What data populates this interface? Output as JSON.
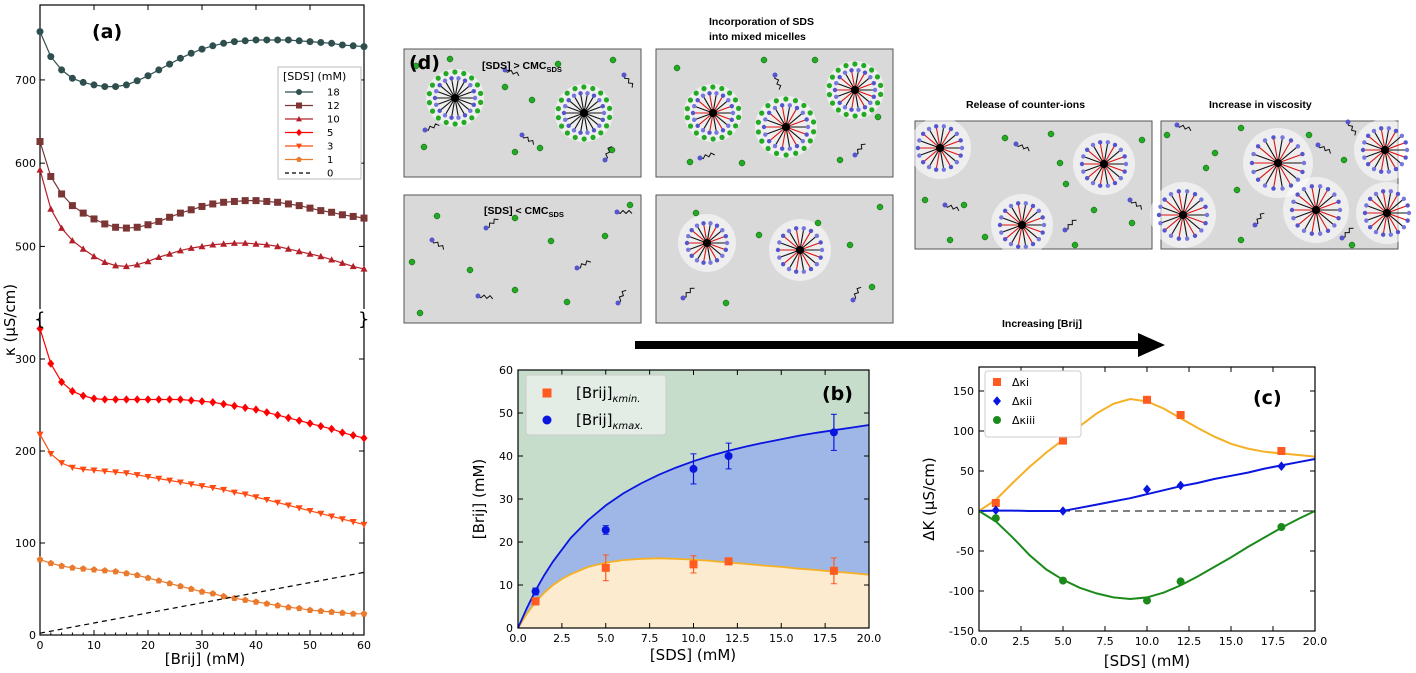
{
  "colors": {
    "sds_18": "#2f4f4f",
    "sds_12": "#7b3535",
    "sds_10": "#b3202a",
    "sds_5": "#ff0000",
    "sds_3": "#ff4a12",
    "sds_1": "#ea7a2d",
    "brij_only": "#000000",
    "kmin": "#ff5a1f",
    "kmax": "#0a16e0",
    "fill_kmin": "#fdebd0",
    "fill_kmax": "#9fb7e6",
    "fill_upper": "#c7ddcc",
    "fit_orange": "#f5b025",
    "fit_blue": "#0a16e0",
    "fit_green": "#1b8a1b",
    "scene_bg": "#d9d9d9",
    "counter_ion": "#22aa22",
    "head": "#5555cc",
    "tail": "#111111",
    "brij_tail": "#dd1111"
  },
  "panel_a": {
    "label": "(a)",
    "xlabel": "[Brij] (mM)",
    "ylabel": "κ (μS/cm)",
    "legend_title": "[SDS] (mM)",
    "x_ticks": [
      "0",
      "10",
      "20",
      "30",
      "40",
      "50",
      "60"
    ],
    "upper_y_ticks": [
      "500",
      "600",
      "700"
    ],
    "lower_y_ticks": [
      "0",
      "100",
      "200",
      "300"
    ],
    "break_marks": [
      {
        "symbol": "{"
      },
      {
        "symbol": "}"
      }
    ]
  },
  "panel_b": {
    "label": "(b)",
    "xlabel": "[SDS] (mM)",
    "ylabel": "[Brij] (mM)",
    "x_ticks": [
      "0.0",
      "2.5",
      "5.0",
      "7.5",
      "10.0",
      "12.5",
      "15.0",
      "17.5",
      "20.0"
    ],
    "y_ticks": [
      "0",
      "10",
      "20",
      "30",
      "40",
      "50",
      "60"
    ],
    "legend": [
      {
        "base": "[Brij]",
        "sub": "κmin.",
        "marker": "square",
        "color_key": "kmin"
      },
      {
        "base": "[Brij]",
        "sub": "κmax.",
        "marker": "circle",
        "color_key": "kmax"
      }
    ]
  },
  "panel_c": {
    "label": "(c)",
    "xlabel": "[SDS] (mM)",
    "ylabel": "ΔK (μS/cm)",
    "x_ticks": [
      "0.0",
      "2.5",
      "5.0",
      "7.5",
      "10.0",
      "12.5",
      "15.0",
      "17.5",
      "20.0"
    ],
    "y_ticks": [
      "-150",
      "-100",
      "-50",
      "0",
      "50",
      "100",
      "150"
    ],
    "legend": [
      {
        "label": "Δκi",
        "marker": "square",
        "color_key": "kmin"
      },
      {
        "label": "Δκii",
        "marker": "diamond",
        "color_key": "kmax"
      },
      {
        "label": "Δκiii",
        "marker": "circle",
        "color_key": "fit_green"
      }
    ]
  },
  "panel_d": {
    "label": "(d)",
    "caption_incorporation_1": "Incorporation of SDS",
    "caption_incorporation_2": "into mixed micelles",
    "caption_release": "Release of counter-ions",
    "caption_viscosity": "Increase in viscosity",
    "caption_increasing": "Increasing  [Brij]",
    "scene_above_cmc": {
      "prefix": "[SDS] > CMC",
      "sub": "SDS"
    },
    "scene_below_cmc": {
      "prefix": "[SDS] < CMC",
      "sub": "SDS"
    }
  },
  "chart_data": [
    {
      "id": "panel_a",
      "type": "line",
      "title": "",
      "xlabel": "[Brij] (mM)",
      "ylabel": "κ (μS/cm)",
      "xlim": [
        0,
        60
      ],
      "ylim_lower": [
        0,
        350
      ],
      "ylim_upper": [
        420,
        790
      ],
      "axis_break": [
        350,
        420
      ],
      "legend_title": "[SDS] (mM)",
      "legend_position": "upper-right",
      "series": [
        {
          "name": "18",
          "marker": "circle",
          "color_key": "sds_18",
          "x": [
            0,
            2,
            4,
            6,
            8,
            10,
            12,
            14,
            16,
            18,
            20,
            22,
            24,
            26,
            28,
            30,
            32,
            34,
            36,
            38,
            40,
            42,
            44,
            46,
            48,
            50,
            52,
            54,
            56,
            58,
            60
          ],
          "y": [
            758,
            728,
            712,
            702,
            697,
            694,
            692,
            692,
            694,
            699,
            705,
            712,
            719,
            726,
            732,
            737,
            741,
            744,
            746,
            747,
            748,
            748,
            748,
            748,
            747,
            746,
            745,
            744,
            742,
            741,
            740
          ]
        },
        {
          "name": "12",
          "marker": "square",
          "color_key": "sds_12",
          "x": [
            0,
            2,
            4,
            6,
            8,
            10,
            12,
            14,
            16,
            18,
            20,
            22,
            24,
            26,
            28,
            30,
            32,
            34,
            36,
            38,
            40,
            42,
            44,
            46,
            48,
            50,
            52,
            54,
            56,
            58,
            60
          ],
          "y": [
            626,
            584,
            563,
            549,
            540,
            533,
            527,
            523,
            522,
            523,
            526,
            530,
            535,
            540,
            544,
            548,
            551,
            553,
            554,
            555,
            555,
            554,
            553,
            551,
            549,
            546,
            543,
            541,
            538,
            536,
            534
          ]
        },
        {
          "name": "10",
          "marker": "triangle-up",
          "color_key": "sds_10",
          "x": [
            0,
            2,
            4,
            6,
            8,
            10,
            12,
            14,
            16,
            18,
            20,
            22,
            24,
            26,
            28,
            30,
            32,
            34,
            36,
            38,
            40,
            42,
            44,
            46,
            48,
            50,
            52,
            54,
            56,
            58,
            60
          ],
          "y": [
            592,
            545,
            522,
            507,
            497,
            488,
            481,
            477,
            476,
            478,
            482,
            487,
            491,
            495,
            498,
            500,
            502,
            503,
            504,
            504,
            503,
            502,
            500,
            497,
            494,
            491,
            488,
            484,
            480,
            476,
            473
          ]
        },
        {
          "name": "5",
          "marker": "diamond",
          "color_key": "sds_5",
          "x": [
            0,
            2,
            4,
            6,
            8,
            10,
            12,
            14,
            16,
            18,
            20,
            22,
            24,
            26,
            28,
            30,
            32,
            34,
            36,
            38,
            40,
            42,
            44,
            46,
            48,
            50,
            52,
            54,
            56,
            58,
            60
          ],
          "y": [
            333,
            295,
            275,
            265,
            260,
            257,
            256,
            256,
            256,
            256,
            256,
            256,
            256,
            256,
            255,
            254,
            253,
            251,
            249,
            247,
            245,
            242,
            239,
            236,
            233,
            230,
            227,
            224,
            220,
            217,
            214
          ]
        },
        {
          "name": "3",
          "marker": "triangle-down",
          "color_key": "sds_3",
          "x": [
            0,
            2,
            4,
            6,
            8,
            10,
            12,
            14,
            16,
            18,
            20,
            22,
            24,
            26,
            28,
            30,
            32,
            34,
            36,
            38,
            40,
            42,
            44,
            46,
            48,
            50,
            52,
            54,
            56,
            58,
            60
          ],
          "y": [
            218,
            197,
            187,
            182,
            180,
            179,
            178,
            177,
            176,
            174,
            172,
            170,
            168,
            166,
            164,
            162,
            160,
            158,
            155,
            153,
            150,
            147,
            144,
            141,
            138,
            135,
            132,
            129,
            126,
            123,
            120
          ]
        },
        {
          "name": "1",
          "marker": "pentagon",
          "color_key": "sds_1",
          "x": [
            0,
            2,
            4,
            6,
            8,
            10,
            12,
            14,
            16,
            18,
            20,
            22,
            24,
            26,
            28,
            30,
            32,
            34,
            36,
            38,
            40,
            42,
            44,
            46,
            48,
            50,
            52,
            54,
            56,
            58,
            60
          ],
          "y": [
            82,
            78,
            75,
            73,
            72,
            71,
            70,
            69,
            67,
            65,
            62,
            59,
            56,
            53,
            50,
            47,
            45,
            42,
            40,
            38,
            36,
            34,
            32,
            30,
            29,
            27,
            26,
            25,
            24,
            23,
            23
          ]
        },
        {
          "name": "0",
          "marker": "none",
          "dash": true,
          "color_key": "brij_only",
          "x": [
            0,
            10,
            20,
            30,
            40,
            50,
            60
          ],
          "y": [
            2,
            13,
            24,
            35,
            46,
            57,
            68
          ]
        }
      ]
    },
    {
      "id": "panel_b",
      "type": "scatter",
      "title": "",
      "xlabel": "[SDS] (mM)",
      "ylabel": "[Brij] (mM)",
      "xlim": [
        0,
        20
      ],
      "ylim": [
        0,
        60
      ],
      "legend_position": "upper-left",
      "series": [
        {
          "name": "[Brij]κmin.",
          "marker": "square",
          "color_key": "kmin",
          "x": [
            1,
            5,
            10,
            12,
            18
          ],
          "y": [
            6.2,
            14.0,
            14.8,
            15.5,
            13.3
          ],
          "yerr": [
            0.8,
            3.0,
            2.0,
            0.8,
            3.0
          ]
        },
        {
          "name": "[Brij]κmax.",
          "marker": "circle",
          "color_key": "kmax",
          "x": [
            1,
            5,
            10,
            12,
            18
          ],
          "y": [
            8.5,
            22.8,
            37.0,
            40.0,
            45.5
          ],
          "yerr": [
            0.8,
            1.0,
            3.5,
            3.0,
            4.2
          ]
        }
      ],
      "fit_curves": [
        {
          "color_key": "fit_orange",
          "x": [
            0,
            0.5,
            1,
            1.5,
            2,
            2.5,
            3,
            4,
            5,
            6,
            7,
            8,
            9,
            10,
            11,
            12,
            13,
            14,
            15,
            16,
            17,
            18,
            19,
            20
          ],
          "y": [
            0,
            3.3,
            6.0,
            8.2,
            10.0,
            11.4,
            12.5,
            14.2,
            15.2,
            15.8,
            16.1,
            16.2,
            16.1,
            15.9,
            15.6,
            15.2,
            14.9,
            14.5,
            14.2,
            13.8,
            13.5,
            13.1,
            12.8,
            12.4
          ]
        },
        {
          "color_key": "fit_blue",
          "x": [
            0,
            0.5,
            1,
            1.5,
            2,
            3,
            4,
            5,
            6,
            7,
            8,
            9,
            10,
            11,
            12,
            13,
            14,
            15,
            16,
            17,
            18,
            19,
            20
          ],
          "y": [
            0,
            4.6,
            8.7,
            12.3,
            15.5,
            20.9,
            25.1,
            28.5,
            31.3,
            33.6,
            35.6,
            37.3,
            38.8,
            40.1,
            41.2,
            42.2,
            43.1,
            43.9,
            44.7,
            45.4,
            46.0,
            46.6,
            47.2
          ]
        }
      ]
    },
    {
      "id": "panel_c",
      "type": "scatter",
      "title": "",
      "xlabel": "[SDS] (mM)",
      "ylabel": "ΔK (μS/cm)",
      "xlim": [
        0,
        20
      ],
      "ylim": [
        -150,
        180
      ],
      "legend_position": "upper-left",
      "series": [
        {
          "name": "Δκi",
          "marker": "square",
          "color_key": "kmin",
          "x": [
            1,
            5,
            10,
            12,
            18
          ],
          "y": [
            10,
            88,
            139,
            120,
            75
          ]
        },
        {
          "name": "Δκii",
          "marker": "diamond",
          "color_key": "kmax",
          "x": [
            1,
            5,
            10,
            12,
            18
          ],
          "y": [
            1,
            0,
            27,
            32,
            56
          ]
        },
        {
          "name": "Δκiii",
          "marker": "circle",
          "color_key": "fit_green",
          "x": [
            1,
            5,
            10,
            12,
            18
          ],
          "y": [
            -9,
            -87,
            -112,
            -88,
            -20
          ]
        }
      ],
      "fit_curves": [
        {
          "color_key": "fit_orange",
          "x": [
            0,
            1,
            2,
            3,
            4,
            5,
            6,
            7,
            8,
            9,
            10,
            11,
            12,
            13,
            14,
            15,
            16,
            17,
            18,
            19,
            20
          ],
          "y": [
            0,
            14,
            35,
            55,
            73,
            89,
            106,
            122,
            134,
            140,
            137,
            128,
            116,
            104,
            93,
            84,
            78,
            74,
            72,
            70,
            68
          ]
        },
        {
          "color_key": "fit_blue",
          "x": [
            0,
            1,
            2,
            3,
            4,
            5,
            6,
            7,
            8,
            9,
            10,
            11,
            12,
            13,
            14,
            15,
            16,
            17,
            18,
            19,
            20
          ],
          "y": [
            0,
            0.5,
            0.5,
            0,
            0,
            0,
            4,
            8,
            12,
            16,
            21,
            26,
            31,
            35,
            40,
            44,
            48,
            53,
            57,
            61,
            65
          ]
        },
        {
          "color_key": "fit_green",
          "x": [
            0,
            1,
            2,
            3,
            4,
            5,
            6,
            7,
            8,
            9,
            10,
            11,
            12,
            13,
            14,
            15,
            16,
            17,
            18,
            19,
            20
          ],
          "y": [
            0,
            -13,
            -33,
            -55,
            -73,
            -86,
            -96,
            -103,
            -108,
            -110,
            -108,
            -102,
            -93,
            -82,
            -70,
            -58,
            -45,
            -33,
            -21,
            -10,
            0
          ]
        }
      ]
    }
  ]
}
